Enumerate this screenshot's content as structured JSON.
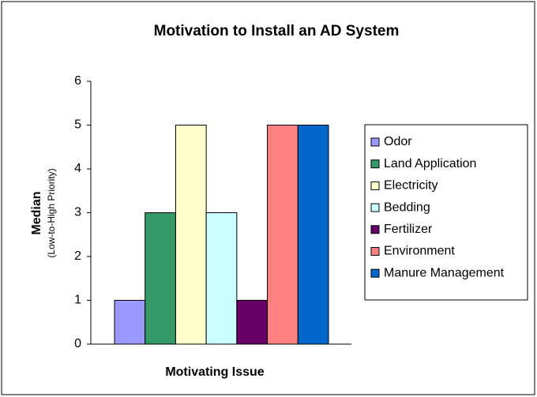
{
  "chart_data": {
    "type": "bar",
    "title": "Motivation to Install an AD System",
    "x_label": "Motivating Issue",
    "y_label": "Median",
    "y_sublabel": "(Low-to-High Priority)",
    "categories": [
      null
    ],
    "series": [
      {
        "name": "Odor",
        "color": "#9999ff",
        "values": [
          1
        ]
      },
      {
        "name": "Land Application",
        "color": "#339966",
        "values": [
          3
        ]
      },
      {
        "name": "Electricity",
        "color": "#ffffcc",
        "values": [
          5
        ]
      },
      {
        "name": "Bedding",
        "color": "#ccffff",
        "values": [
          3
        ]
      },
      {
        "name": "Fertilizer",
        "color": "#660066",
        "values": [
          1
        ]
      },
      {
        "name": "Environment",
        "color": "#ff8080",
        "values": [
          5
        ]
      },
      {
        "name": "Manure Management",
        "color": "#0066cc",
        "values": [
          5
        ]
      }
    ],
    "ylim": [
      0,
      6
    ],
    "yticks": [
      0,
      1,
      2,
      3,
      4,
      5,
      6
    ],
    "legend": "right"
  }
}
